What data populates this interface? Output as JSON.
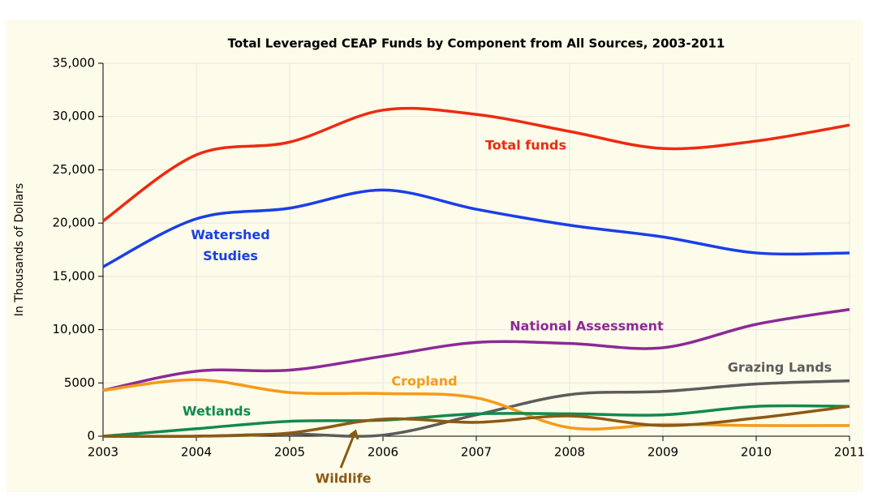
{
  "chart_data": {
    "type": "line",
    "title": "Total Leveraged CEAP Funds by Component from All Sources, 2003-2011",
    "y_label": "In Thousands of Dollars",
    "x": [
      2003,
      2004,
      2005,
      2006,
      2007,
      2008,
      2009,
      2010,
      2011
    ],
    "xlim": [
      2003,
      2011
    ],
    "xticks": [
      2003,
      2004,
      2005,
      2006,
      2007,
      2008,
      2009,
      2010,
      2011
    ],
    "ylim": [
      0,
      35000
    ],
    "yticks": [
      0,
      5000,
      {
        "value": 10000,
        "label": "10,000"
      },
      {
        "value": 15000,
        "label": "15,000"
      },
      {
        "value": 20000,
        "label": "20,000"
      },
      {
        "value": 25000,
        "label": "25,000"
      },
      {
        "value": 30000,
        "label": "30,000"
      },
      {
        "value": 35000,
        "label": "35,000"
      }
    ],
    "grid": true,
    "series": [
      {
        "name": "Total funds",
        "color": "#ee2a10",
        "values": [
          20200,
          26400,
          27600,
          30600,
          30200,
          28600,
          27000,
          27700,
          29200
        ]
      },
      {
        "name": "Watershed Studies",
        "color": "#1a3ee8",
        "values": [
          15900,
          20400,
          21400,
          23100,
          21300,
          19800,
          18700,
          17200,
          17200
        ]
      },
      {
        "name": "National Assessment",
        "color": "#8b2a96",
        "values": [
          4300,
          6100,
          6200,
          7500,
          8800,
          8700,
          8300,
          10500,
          11900
        ]
      },
      {
        "name": "Grazing Lands",
        "color": "#5c5c5c",
        "values": [
          0,
          0,
          200,
          100,
          2000,
          3900,
          4200,
          4900,
          5200
        ]
      },
      {
        "name": "Cropland",
        "color": "#f79a17",
        "values": [
          4300,
          5300,
          4100,
          4000,
          3600,
          800,
          1100,
          1000,
          1000
        ]
      },
      {
        "name": "Wetlands",
        "color": "#12894e",
        "values": [
          0,
          700,
          1400,
          1500,
          2100,
          2100,
          2000,
          2800,
          2800
        ]
      },
      {
        "name": "Wildlife",
        "color": "#8b5a14",
        "values": [
          0,
          0,
          300,
          1600,
          1300,
          1900,
          1000,
          1700,
          2800
        ]
      }
    ]
  }
}
